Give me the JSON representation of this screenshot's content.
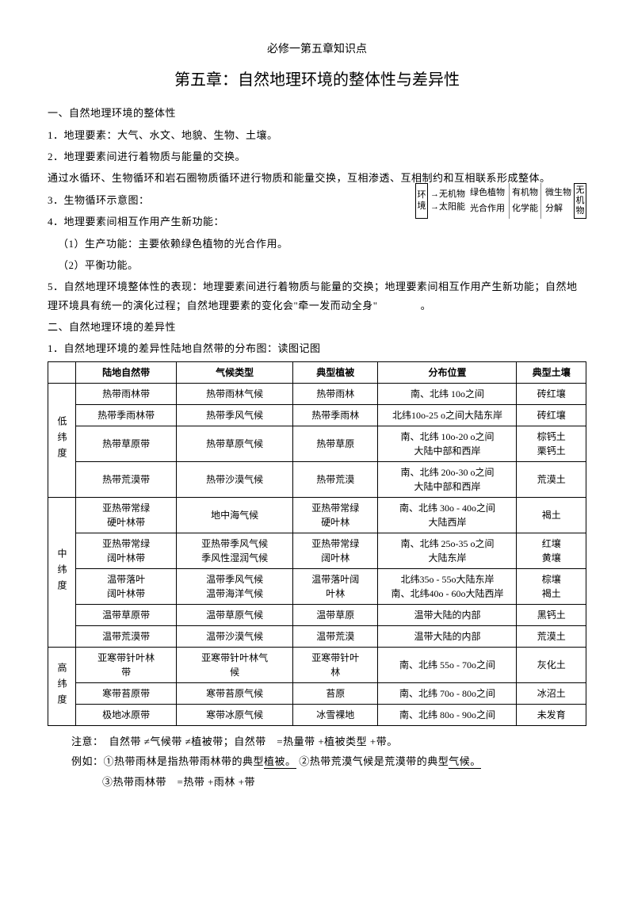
{
  "header": {
    "subtitle": "必修一第五章知识点",
    "title": "第五章：自然地理环境的整体性与差异性"
  },
  "section1": {
    "heading": "一、自然地理环境的整体性",
    "p1": "1．地理要素：大气、水文、地貌、生物、土壤。",
    "p2": "2．地理要素间进行着物质与能量的交换。",
    "p3": "通过水循环、生物循环和岩石圈物质循环进行物质和能量交换，互相渗透、互相制约和互相联系形成整体。",
    "p4": "3．生物循环示意图：",
    "p5": "4．地理要素间相互作用产生新功能：",
    "p6": "（1）生产功能：主要依赖绿色植物的光合作用。",
    "p7": "（2）平衡功能。",
    "p8": "5．自然地理环境整体性的表现：地理要素间进行着物质与能量的交换；地理要素间相互作用产生新功能；自然地理环境具有统一的演化过程；自然地理要素的变化会\"牵一发而动全身\"　　　　。"
  },
  "diagram": {
    "left_top": "环",
    "left_bottom": "境",
    "r1a": "→无机物",
    "r1b": "绿色植物",
    "r1c": "有机物",
    "r1d": "微生物",
    "r2a": "→太阳能",
    "r2b": "光合作用",
    "r2c": "化学能",
    "r2d": "分解",
    "right_top": "无",
    "right_mid": "机",
    "right_bot": "物"
  },
  "section2": {
    "heading": "二、自然地理环境的差异性",
    "p1": "1．自然地理环境的差异性陆地自然带的分布图：读图记图"
  },
  "table": {
    "headers": [
      "陆地自然带",
      "气候类型",
      "典型植被",
      "分布位置",
      "典型土壤"
    ],
    "groups": [
      {
        "label": "低纬度",
        "rows": [
          [
            "热带雨林带",
            "热带雨林气候",
            "热带雨林",
            "南、北纬 10o之间",
            "砖红壤"
          ],
          [
            "热带季雨林带",
            "热带季风气候",
            "热带季雨林",
            "北纬10o-25 o之间大陆东岸",
            "砖红壤"
          ],
          [
            "热带草原带",
            "热带草原气候",
            "热带草原",
            "南、北纬 10o-20 o之间\n大陆中部和西岸",
            "棕钙土\n栗钙土"
          ],
          [
            "热带荒漠带",
            "热带沙漠气候",
            "热带荒漠",
            "南、北纬 20o-30 o之间\n大陆中部和西岸",
            "荒漠土"
          ]
        ]
      },
      {
        "label": "中纬度",
        "rows": [
          [
            "亚热带常绿\n硬叶林带",
            "地中海气候",
            "亚热带常绿\n硬叶林",
            "南、北纬 30o - 40o之间\n大陆西岸",
            "褐土"
          ],
          [
            "亚热带常绿\n阔叶林带",
            "亚热带季风气候\n季风性湿润气候",
            "亚热带常绿\n阔叶林",
            "南、北纬 25o-35 o之间\n大陆东岸",
            "红壤\n黄壤"
          ],
          [
            "温带落叶\n阔叶林带",
            "温带季风气候\n温带海洋气候",
            "温带落叶阔\n叶林",
            "北纬35o - 55o大陆东岸\n南、北纬40o - 60o大陆西岸",
            "棕壤\n褐土"
          ],
          [
            "温带草原带",
            "温带草原气候",
            "温带草原",
            "温带大陆的内部",
            "黑钙土"
          ],
          [
            "温带荒漠带",
            "温带沙漠气候",
            "温带荒漠",
            "温带大陆的内部",
            "荒漠土"
          ]
        ]
      },
      {
        "label": "高纬度",
        "rows": [
          [
            "亚寒带针叶林\n带",
            "亚寒带针叶林气\n候",
            "亚寒带针叶\n林",
            "南、北纬 55o - 70o之间",
            "灰化土"
          ],
          [
            "寒带苔原带",
            "寒带苔原气候",
            "苔原",
            "南、北纬 70o - 80o之间",
            "冰沼土"
          ],
          [
            "极地冰原带",
            "寒带冰原气候",
            "冰雪裸地",
            "南、北纬 80o - 90o之间",
            "未发育"
          ]
        ]
      }
    ]
  },
  "notes": {
    "n1": "注意：　自然带 ≠气候带 ≠植被带；自然带　=热量带 +植被类型 +带。",
    "n2a": "例如：①热带雨林是指热带雨林带的典型",
    "n2b": "植被。",
    "n2c": "②热带荒漠气候是荒漠带的典型",
    "n2d": "气候。",
    "n3": "③热带雨林带　=热带 +雨林 +带"
  },
  "style": {
    "bg": "#ffffff",
    "text": "#000000",
    "border": "#000000"
  }
}
